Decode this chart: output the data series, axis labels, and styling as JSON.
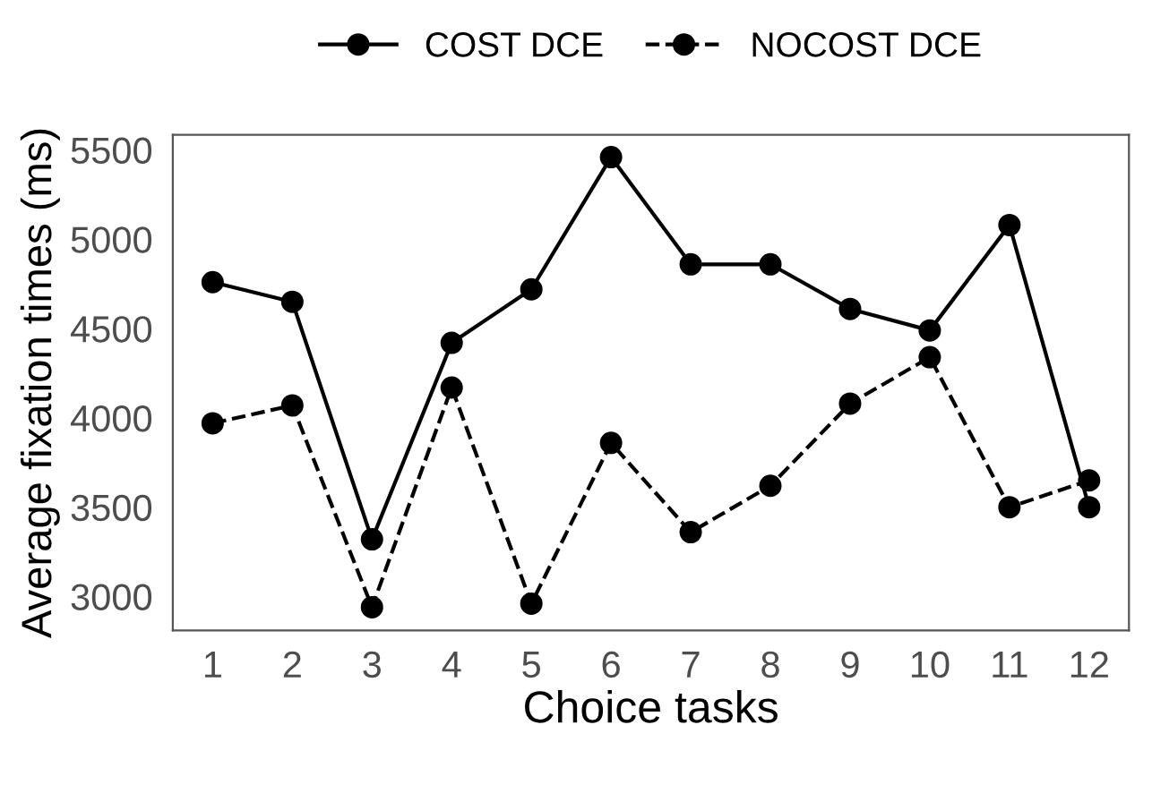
{
  "chart_data": {
    "type": "line",
    "xlabel": "Choice tasks",
    "ylabel": "Average fixation times (ms)",
    "categories": [
      "1",
      "2",
      "3",
      "4",
      "5",
      "6",
      "7",
      "8",
      "9",
      "10",
      "11",
      "12"
    ],
    "series": [
      {
        "name": "COST DCE",
        "color": "#000000",
        "line_style": "solid",
        "values": [
          4760,
          4650,
          3320,
          4420,
          4720,
          5460,
          4860,
          4860,
          4610,
          4490,
          5080,
          3500
        ]
      },
      {
        "name": "NOCOST DCE",
        "color": "#000000",
        "line_style": "dashed",
        "values": [
          3970,
          4070,
          2940,
          4170,
          2960,
          3860,
          3360,
          3620,
          4080,
          4340,
          3500,
          3650
        ]
      }
    ],
    "ylim": [
      2810,
      5585
    ],
    "yticks": [
      3000,
      3500,
      4000,
      4500,
      5000,
      5500
    ],
    "marker": "circle",
    "grid": false,
    "legend": "top"
  }
}
